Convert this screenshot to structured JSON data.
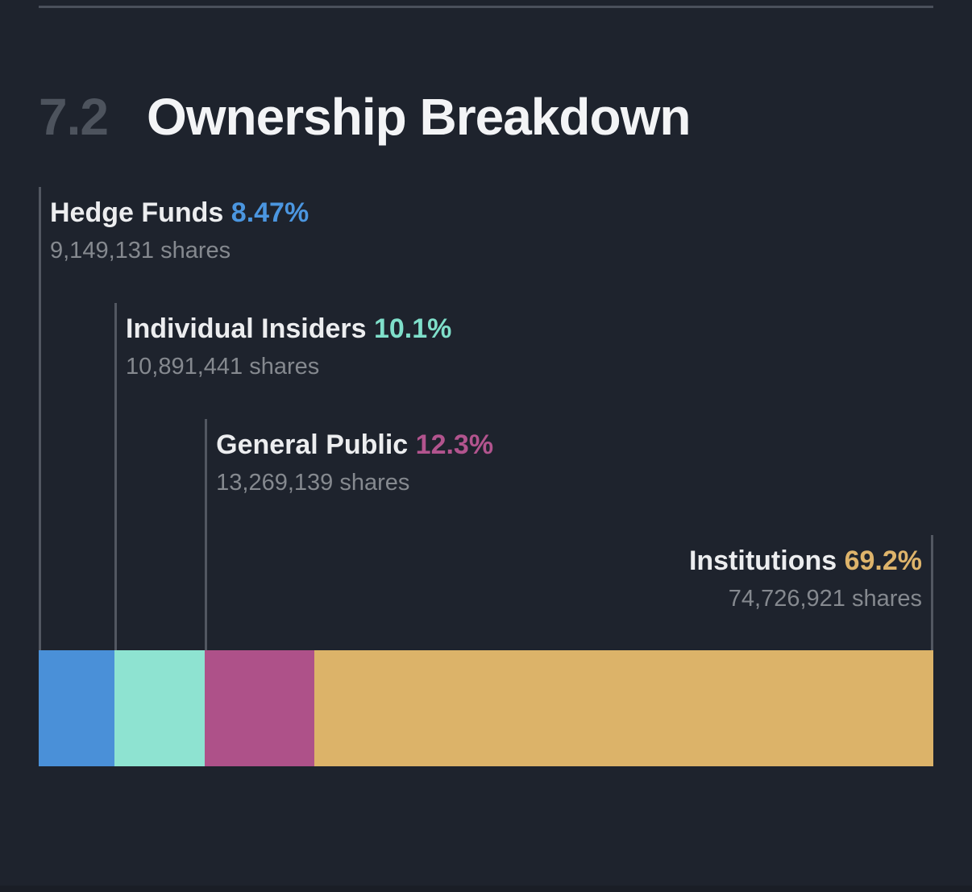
{
  "page": {
    "background_color": "#1e232d",
    "divider_color": "#4a505b",
    "leader_line_color": "#525761"
  },
  "header": {
    "section_number": "7.2",
    "title": "Ownership Breakdown"
  },
  "chart_data": {
    "type": "bar",
    "subtype": "horizontal-stacked-single-bar",
    "title": "Ownership Breakdown",
    "unit": "shares",
    "legend_position": "labels-above-with-leader-lines",
    "segments": [
      {
        "label": "Hedge Funds",
        "pct": 8.47,
        "pct_display": "8.47%",
        "shares": 9149131,
        "shares_display": "9,149,131 shares",
        "bar_color": "#4a90d8",
        "pct_color": "#4b96e0",
        "align": "left"
      },
      {
        "label": "Individual Insiders",
        "pct": 10.1,
        "pct_display": "10.1%",
        "shares": 10891441,
        "shares_display": "10,891,441 shares",
        "bar_color": "#8ee3d1",
        "pct_color": "#7fdfca",
        "align": "left"
      },
      {
        "label": "General Public",
        "pct": 12.3,
        "pct_display": "12.3%",
        "shares": 13269139,
        "shares_display": "13,269,139 shares",
        "bar_color": "#ae5189",
        "pct_color": "#b2548e",
        "align": "left"
      },
      {
        "label": "Institutions",
        "pct": 69.2,
        "pct_display": "69.2%",
        "shares": 74726921,
        "shares_display": "74,726,921 shares",
        "bar_color": "#dcb369",
        "pct_color": "#deb46b",
        "align": "right"
      }
    ]
  }
}
